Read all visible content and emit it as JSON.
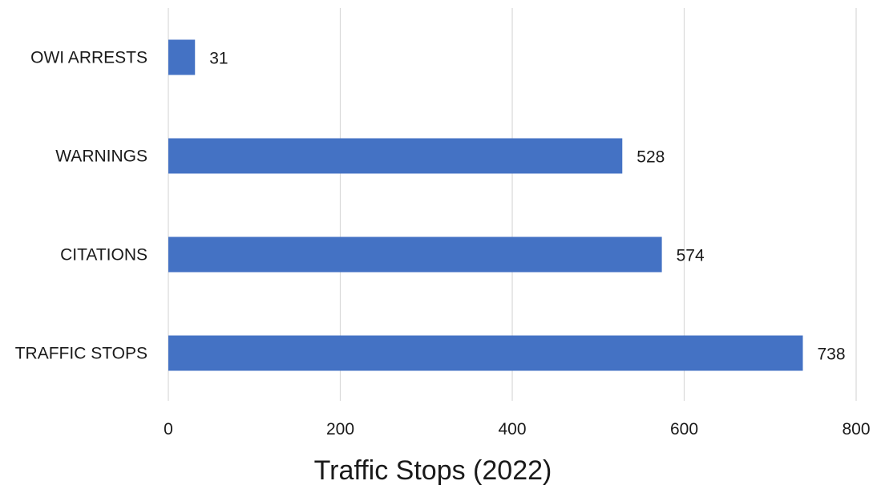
{
  "chart_data": {
    "type": "bar",
    "orientation": "horizontal",
    "categories": [
      "OWI ARRESTS",
      "WARNINGS",
      "CITATIONS",
      "TRAFFIC STOPS"
    ],
    "values": [
      31,
      528,
      574,
      738
    ],
    "title": "",
    "xlabel": "Traffic Stops (2022)",
    "ylabel": "",
    "xlim": [
      0,
      800
    ],
    "xticks": [
      "0",
      "200",
      "400",
      "600",
      "800"
    ],
    "data_labels": [
      "31",
      "528",
      "574",
      "738"
    ],
    "grid": true,
    "legend": "none",
    "bar_color": "#4472C4"
  }
}
